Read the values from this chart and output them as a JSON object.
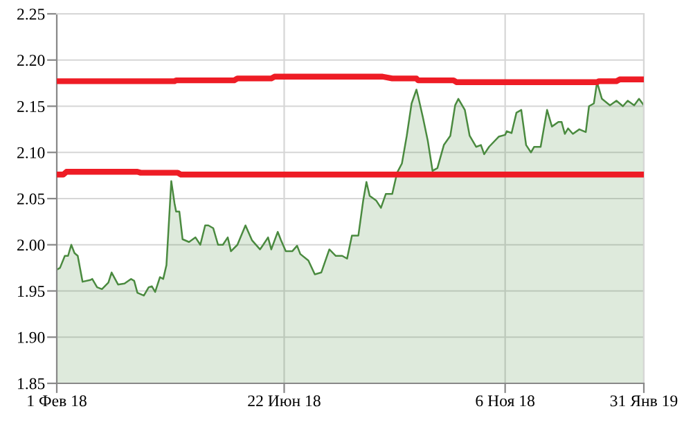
{
  "chart_data": {
    "type": "area",
    "xlim": [
      "2018-02-01",
      "2019-01-31"
    ],
    "xticks": [
      {
        "value": "2018-02-01",
        "label": "1 Фев 18"
      },
      {
        "value": "2018-06-22",
        "label": "22 Июн 18"
      },
      {
        "value": "2018-11-06",
        "label": "6 Ноя 18"
      },
      {
        "value": "2019-01-31",
        "label": "31 Янв 19"
      }
    ],
    "ylim": [
      1.85,
      2.25
    ],
    "yticks": [
      {
        "value": 1.85,
        "label": "1.85"
      },
      {
        "value": 1.9,
        "label": "1.90"
      },
      {
        "value": 1.95,
        "label": "1.95"
      },
      {
        "value": 2.0,
        "label": "2.00"
      },
      {
        "value": 2.05,
        "label": "2.05"
      },
      {
        "value": 2.1,
        "label": "2.10"
      },
      {
        "value": 2.15,
        "label": "2.15"
      },
      {
        "value": 2.2,
        "label": "2.20"
      },
      {
        "value": 2.25,
        "label": "2.25"
      }
    ],
    "grid": true,
    "series": [
      {
        "color": "#4a8a3f",
        "x": [
          "2018-02-01",
          "2018-02-03",
          "2018-02-06",
          "2018-02-08",
          "2018-02-10",
          "2018-02-12",
          "2018-02-14",
          "2018-02-17",
          "2018-02-22",
          "2018-02-23",
          "2018-02-26",
          "2018-03-01",
          "2018-03-05",
          "2018-03-07",
          "2018-03-11",
          "2018-03-15",
          "2018-03-19",
          "2018-03-21",
          "2018-03-23",
          "2018-03-27",
          "2018-03-30",
          "2018-04-01",
          "2018-04-03",
          "2018-04-06",
          "2018-04-08",
          "2018-04-10",
          "2018-04-13",
          "2018-04-15",
          "2018-04-16",
          "2018-04-18",
          "2018-04-20",
          "2018-04-24",
          "2018-04-28",
          "2018-05-01",
          "2018-05-04",
          "2018-05-06",
          "2018-05-09",
          "2018-05-12",
          "2018-05-15",
          "2018-05-18",
          "2018-05-20",
          "2018-05-24",
          "2018-05-29",
          "2018-06-02",
          "2018-06-07",
          "2018-06-09",
          "2018-06-12",
          "2018-06-14",
          "2018-06-18",
          "2018-06-20",
          "2018-06-23",
          "2018-06-27",
          "2018-06-30",
          "2018-07-02",
          "2018-07-07",
          "2018-07-11",
          "2018-07-15",
          "2018-07-20",
          "2018-07-24",
          "2018-07-28",
          "2018-07-31",
          "2018-08-03",
          "2018-08-07",
          "2018-08-10",
          "2018-08-12",
          "2018-08-14",
          "2018-08-18",
          "2018-08-21",
          "2018-08-24",
          "2018-08-28",
          "2018-08-31",
          "2018-09-03",
          "2018-09-06",
          "2018-09-09",
          "2018-09-12",
          "2018-09-13",
          "2018-09-16",
          "2018-09-19",
          "2018-09-22",
          "2018-09-25",
          "2018-09-29",
          "2018-10-03",
          "2018-10-06",
          "2018-10-08",
          "2018-10-12",
          "2018-10-15",
          "2018-10-19",
          "2018-10-22",
          "2018-10-24",
          "2018-10-27",
          "2018-11-02",
          "2018-11-06",
          "2018-11-07",
          "2018-11-10",
          "2018-11-13",
          "2018-11-16",
          "2018-11-19",
          "2018-11-22",
          "2018-11-24",
          "2018-11-28",
          "2018-12-02",
          "2018-12-05",
          "2018-12-09",
          "2018-12-11",
          "2018-12-13",
          "2018-12-15",
          "2018-12-18",
          "2018-12-22",
          "2018-12-26",
          "2018-12-28",
          "2018-12-31",
          "2019-01-02",
          "2019-01-05",
          "2019-01-10",
          "2019-01-14",
          "2019-01-18",
          "2019-01-21",
          "2019-01-25",
          "2019-01-28",
          "2019-01-31"
        ],
        "values": [
          1.973,
          1.975,
          1.988,
          1.988,
          2.0,
          1.991,
          1.988,
          1.96,
          1.962,
          1.963,
          1.954,
          1.952,
          1.959,
          1.97,
          1.957,
          1.958,
          1.963,
          1.961,
          1.948,
          1.945,
          1.954,
          1.955,
          1.949,
          1.965,
          1.963,
          1.978,
          2.069,
          2.045,
          2.036,
          2.036,
          2.006,
          2.003,
          2.008,
          2.0,
          2.021,
          2.021,
          2.018,
          2.0,
          2.0,
          2.008,
          1.993,
          2.0,
          2.021,
          2.005,
          1.995,
          2.0,
          2.008,
          1.995,
          2.014,
          2.005,
          1.993,
          1.993,
          1.999,
          1.99,
          1.983,
          1.968,
          1.97,
          1.995,
          1.988,
          1.988,
          1.985,
          2.01,
          2.01,
          2.048,
          2.068,
          2.053,
          2.048,
          2.04,
          2.055,
          2.055,
          2.078,
          2.088,
          2.118,
          2.153,
          2.168,
          2.161,
          2.138,
          2.113,
          2.08,
          2.083,
          2.108,
          2.118,
          2.151,
          2.158,
          2.146,
          2.118,
          2.106,
          2.108,
          2.098,
          2.106,
          2.117,
          2.119,
          2.123,
          2.121,
          2.143,
          2.146,
          2.108,
          2.1,
          2.106,
          2.106,
          2.146,
          2.128,
          2.133,
          2.133,
          2.12,
          2.126,
          2.12,
          2.125,
          2.122,
          2.15,
          2.153,
          2.176,
          2.158,
          2.151,
          2.156,
          2.15,
          2.156,
          2.151,
          2.158,
          2.151
        ]
      },
      {
        "type": "line",
        "color": "#ee1c25",
        "x": [
          "2018-02-01",
          "2018-04-15",
          "2018-04-16",
          "2018-05-22",
          "2018-05-24",
          "2018-06-14",
          "2018-06-16",
          "2018-08-22",
          "2018-08-28",
          "2018-09-12",
          "2018-09-13",
          "2018-10-05",
          "2018-10-07",
          "2019-01-02",
          "2019-01-03",
          "2019-01-14",
          "2019-01-16",
          "2019-01-31"
        ],
        "values": [
          2.177,
          2.177,
          2.178,
          2.178,
          2.18,
          2.18,
          2.182,
          2.182,
          2.18,
          2.18,
          2.178,
          2.178,
          2.176,
          2.176,
          2.177,
          2.177,
          2.179,
          2.179
        ]
      },
      {
        "type": "line",
        "color": "#ee1c25",
        "x": [
          "2018-02-01",
          "2018-02-05",
          "2018-02-07",
          "2018-03-23",
          "2018-03-25",
          "2018-04-17",
          "2018-04-19",
          "2019-01-31"
        ],
        "values": [
          2.076,
          2.076,
          2.079,
          2.079,
          2.078,
          2.078,
          2.076,
          2.076
        ]
      }
    ]
  }
}
